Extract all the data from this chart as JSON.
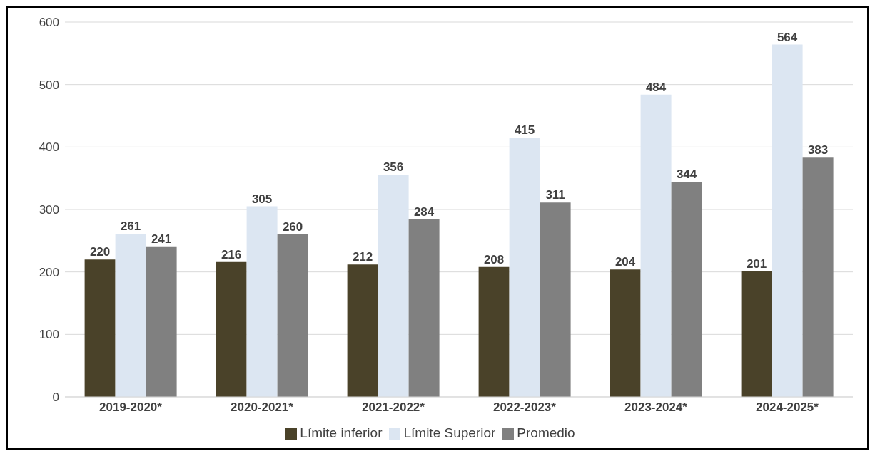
{
  "chart_data": {
    "type": "bar",
    "categories": [
      "2019-2020*",
      "2020-2021*",
      "2021-2022*",
      "2022-2023*",
      "2023-2024*",
      "2024-2025*"
    ],
    "series": [
      {
        "name": "Límite inferior",
        "color": "#4a4229",
        "values": [
          220,
          216,
          212,
          208,
          204,
          201
        ]
      },
      {
        "name": "Límite Superior",
        "color": "#dce6f2",
        "values": [
          261,
          305,
          356,
          415,
          484,
          564
        ]
      },
      {
        "name": "Promedio",
        "color": "#808080",
        "values": [
          241,
          260,
          284,
          311,
          344,
          383
        ]
      }
    ],
    "ylim": [
      0,
      600
    ],
    "yticks": [
      0,
      100,
      200,
      300,
      400,
      500,
      600
    ],
    "grid": "y",
    "legend": "bottom",
    "data_labels": true
  }
}
